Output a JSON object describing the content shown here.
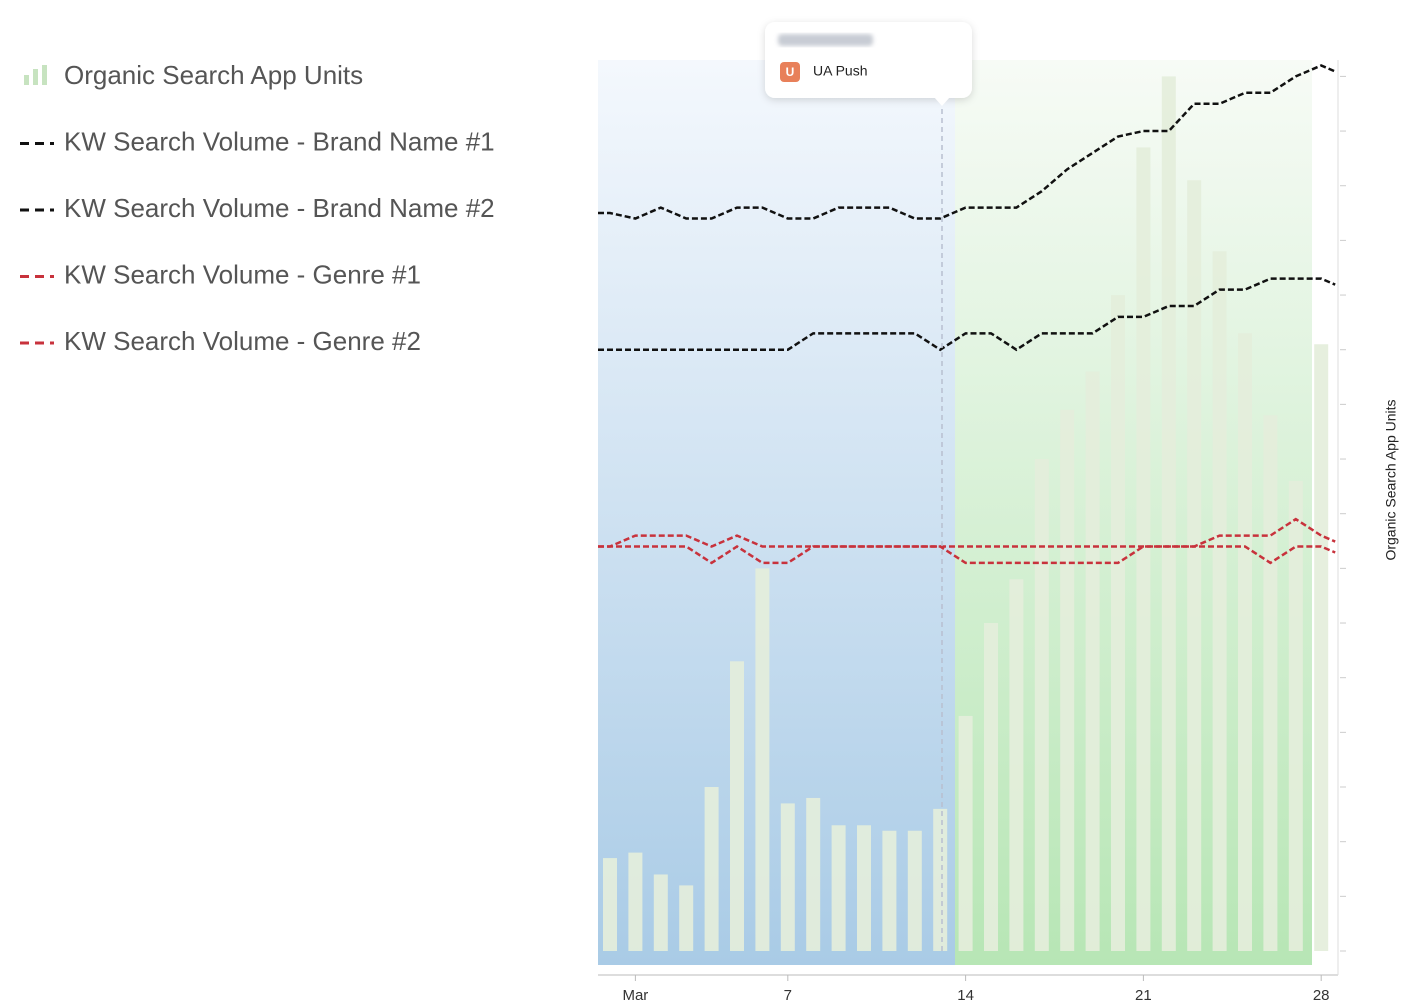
{
  "chart_data": {
    "type": "bar",
    "y_label": "Organic Search App Units",
    "categories": [
      null,
      "Mar",
      null,
      null,
      null,
      null,
      null,
      "7",
      null,
      null,
      null,
      null,
      null,
      null,
      "14",
      null,
      null,
      null,
      null,
      null,
      null,
      "21",
      null,
      null,
      null,
      null,
      null,
      null,
      "28"
    ],
    "ylim": [
      0,
      16.3
    ],
    "yticks": [
      0,
      1,
      2,
      3,
      4,
      5,
      6,
      7,
      8,
      9,
      10,
      11,
      12,
      13,
      14,
      15,
      16
    ],
    "annotation": {
      "badge": "U",
      "label": "UA Push",
      "color": "#e8805a"
    },
    "series": [
      {
        "name": "Organic Search App Units",
        "type": "bar",
        "color": "#e4eedb",
        "values": [
          1.7,
          1.8,
          1.4,
          1.2,
          3.0,
          5.3,
          7.0,
          2.7,
          2.8,
          2.3,
          2.3,
          2.2,
          2.2,
          2.6,
          4.3,
          6.0,
          6.8,
          9.0,
          9.9,
          10.6,
          12.0,
          14.7,
          16.0,
          14.1,
          12.8,
          11.3,
          9.8,
          8.6,
          11.1
        ]
      },
      {
        "name": "KW Search Volume - Brand Name #1",
        "type": "line",
        "color": "#111111",
        "values": [
          13.5,
          13.4,
          13.6,
          13.4,
          13.4,
          13.6,
          13.6,
          13.4,
          13.4,
          13.6,
          13.6,
          13.6,
          13.4,
          13.4,
          13.6,
          13.6,
          13.6,
          13.9,
          14.3,
          14.6,
          14.9,
          15.0,
          15.0,
          15.5,
          15.5,
          15.7,
          15.7,
          16.0,
          16.2
        ]
      },
      {
        "name": "KW Search Volume - Brand Name #2",
        "type": "line",
        "color": "#111111",
        "values": [
          11.0,
          11.0,
          11.0,
          11.0,
          11.0,
          11.0,
          11.0,
          11.0,
          11.3,
          11.3,
          11.3,
          11.3,
          11.3,
          11.0,
          11.3,
          11.3,
          11.0,
          11.3,
          11.3,
          11.3,
          11.6,
          11.6,
          11.8,
          11.8,
          12.1,
          12.1,
          12.3,
          12.3,
          12.3
        ]
      },
      {
        "name": "KW Search Volume - Genre #1",
        "type": "line",
        "color": "#c8323c",
        "values": [
          7.4,
          7.6,
          7.6,
          7.6,
          7.4,
          7.6,
          7.4,
          7.4,
          7.4,
          7.4,
          7.4,
          7.4,
          7.4,
          7.4,
          7.4,
          7.4,
          7.4,
          7.4,
          7.4,
          7.4,
          7.4,
          7.4,
          7.4,
          7.4,
          7.6,
          7.6,
          7.6,
          7.9,
          7.6
        ]
      },
      {
        "name": "KW Search Volume - Genre #2",
        "type": "line",
        "color": "#c8323c",
        "values": [
          7.4,
          7.4,
          7.4,
          7.4,
          7.1,
          7.4,
          7.1,
          7.1,
          7.4,
          7.4,
          7.4,
          7.4,
          7.4,
          7.4,
          7.1,
          7.1,
          7.1,
          7.1,
          7.1,
          7.1,
          7.1,
          7.4,
          7.4,
          7.4,
          7.4,
          7.4,
          7.1,
          7.4,
          7.4
        ]
      }
    ]
  }
}
